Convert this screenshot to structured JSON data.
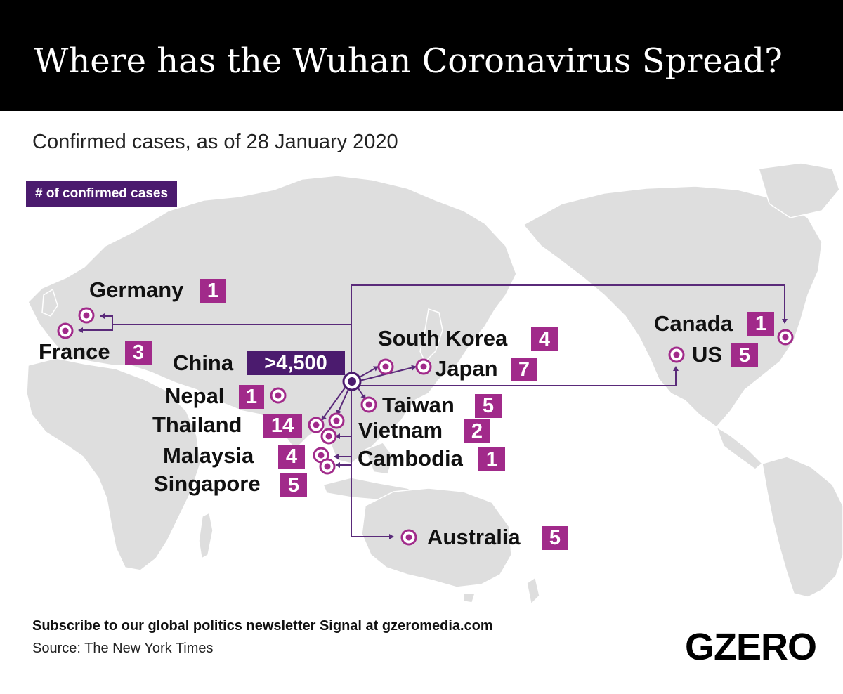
{
  "header": {
    "title": "Where has the Wuhan Coronavirus Spread?",
    "subtitle": "Confirmed cases, as of 28 January 2020"
  },
  "legend": {
    "label": "# of confirmed cases"
  },
  "colors": {
    "marker": "#a12a8a",
    "origin": "#4b1b6e",
    "connector": "#5a2a7a",
    "land": "#dedede",
    "header_bg": "#000000"
  },
  "map": {
    "origin": {
      "name": "China",
      "count": ">4,500"
    },
    "locations": [
      {
        "name": "Germany",
        "count": "1"
      },
      {
        "name": "France",
        "count": "3"
      },
      {
        "name": "Nepal",
        "count": "1"
      },
      {
        "name": "Thailand",
        "count": "14"
      },
      {
        "name": "Malaysia",
        "count": "4"
      },
      {
        "name": "Singapore",
        "count": "5"
      },
      {
        "name": "South Korea",
        "count": "4"
      },
      {
        "name": "Japan",
        "count": "7"
      },
      {
        "name": "Taiwan",
        "count": "5"
      },
      {
        "name": "Vietnam",
        "count": "2"
      },
      {
        "name": "Cambodia",
        "count": "1"
      },
      {
        "name": "Australia",
        "count": "5"
      },
      {
        "name": "Canada",
        "count": "1"
      },
      {
        "name": "US",
        "count": "5"
      }
    ]
  },
  "footer": {
    "cta": "Subscribe to our global politics newsletter Signal at gzeromedia.com",
    "source": "Source: The New York Times",
    "brand": "GZERO"
  }
}
